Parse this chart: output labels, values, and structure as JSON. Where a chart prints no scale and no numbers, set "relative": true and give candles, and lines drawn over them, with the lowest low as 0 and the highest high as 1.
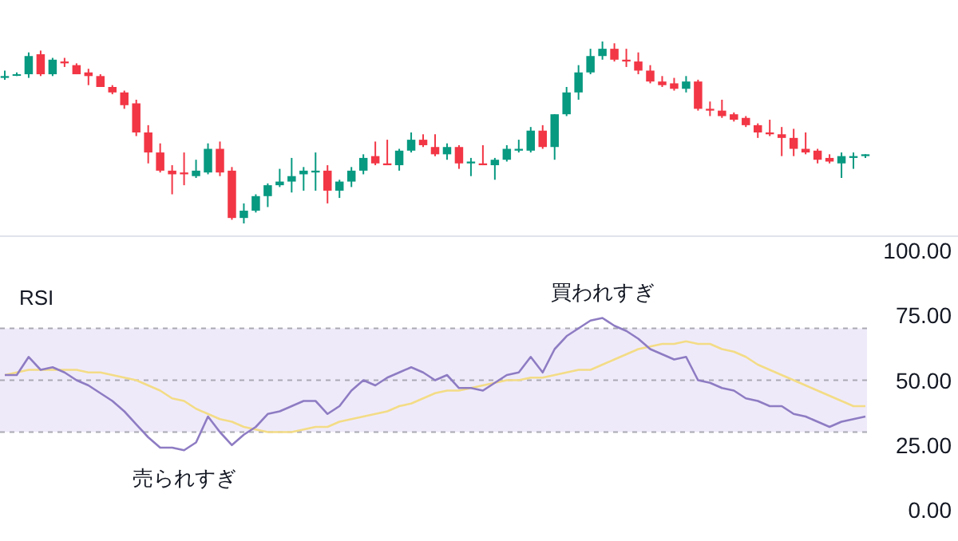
{
  "chart_data": [
    {
      "type": "candlestick",
      "relative": true,
      "categories": [
        null,
        null,
        null,
        null,
        null,
        null,
        null,
        null,
        null,
        null,
        null,
        null,
        null,
        null,
        null,
        null,
        null,
        null,
        null,
        null,
        null,
        null,
        null,
        null,
        null,
        null,
        null,
        null,
        null,
        null,
        null,
        null,
        null,
        null,
        null,
        null,
        null,
        null,
        null,
        null,
        null,
        null,
        null,
        null,
        null,
        null,
        null,
        null,
        null,
        null,
        null,
        null,
        null,
        null,
        null,
        null,
        null,
        null,
        null,
        null,
        null,
        null,
        null,
        null,
        null,
        null,
        null,
        null,
        null,
        null,
        null,
        null,
        null
      ],
      "ohlc": [
        [
          0.8,
          0.84,
          0.79,
          0.81
        ],
        [
          0.82,
          0.83,
          0.81,
          0.82
        ],
        [
          0.82,
          0.94,
          0.8,
          0.92
        ],
        [
          0.93,
          0.95,
          0.81,
          0.82
        ],
        [
          0.82,
          0.91,
          0.81,
          0.9
        ],
        [
          0.89,
          0.91,
          0.86,
          0.88
        ],
        [
          0.87,
          0.88,
          0.82,
          0.82
        ],
        [
          0.83,
          0.85,
          0.76,
          0.81
        ],
        [
          0.81,
          0.82,
          0.75,
          0.75
        ],
        [
          0.75,
          0.76,
          0.71,
          0.72
        ],
        [
          0.72,
          0.73,
          0.63,
          0.65
        ],
        [
          0.66,
          0.68,
          0.48,
          0.5
        ],
        [
          0.5,
          0.54,
          0.33,
          0.39
        ],
        [
          0.39,
          0.44,
          0.28,
          0.29
        ],
        [
          0.29,
          0.32,
          0.16,
          0.27
        ],
        [
          0.28,
          0.39,
          0.21,
          0.27
        ],
        [
          0.26,
          0.35,
          0.25,
          0.29
        ],
        [
          0.28,
          0.44,
          0.27,
          0.41
        ],
        [
          0.41,
          0.45,
          0.26,
          0.28
        ],
        [
          0.29,
          0.31,
          0.02,
          0.03
        ],
        [
          0.03,
          0.11,
          0,
          0.07
        ],
        [
          0.07,
          0.16,
          0.06,
          0.15
        ],
        [
          0.15,
          0.22,
          0.09,
          0.21
        ],
        [
          0.21,
          0.3,
          0.2,
          0.23
        ],
        [
          0.23,
          0.36,
          0.17,
          0.26
        ],
        [
          0.27,
          0.31,
          0.18,
          0.29
        ],
        [
          0.28,
          0.39,
          0.18,
          0.29
        ],
        [
          0.29,
          0.32,
          0.11,
          0.18
        ],
        [
          0.18,
          0.24,
          0.14,
          0.23
        ],
        [
          0.23,
          0.31,
          0.2,
          0.29
        ],
        [
          0.29,
          0.38,
          0.27,
          0.36
        ],
        [
          0.37,
          0.45,
          0.32,
          0.33
        ],
        [
          0.33,
          0.46,
          0.32,
          0.32
        ],
        [
          0.32,
          0.41,
          0.29,
          0.4
        ],
        [
          0.4,
          0.5,
          0.39,
          0.46
        ],
        [
          0.46,
          0.49,
          0.42,
          0.43
        ],
        [
          0.42,
          0.49,
          0.37,
          0.38
        ],
        [
          0.38,
          0.44,
          0.35,
          0.42
        ],
        [
          0.42,
          0.43,
          0.3,
          0.33
        ],
        [
          0.33,
          0.36,
          0.26,
          0.34
        ],
        [
          0.33,
          0.43,
          0.32,
          0.32
        ],
        [
          0.32,
          0.36,
          0.24,
          0.35
        ],
        [
          0.35,
          0.43,
          0.34,
          0.41
        ],
        [
          0.4,
          0.46,
          0.39,
          0.41
        ],
        [
          0.4,
          0.53,
          0.39,
          0.51
        ],
        [
          0.51,
          0.54,
          0.41,
          0.42
        ],
        [
          0.42,
          0.6,
          0.35,
          0.6
        ],
        [
          0.6,
          0.75,
          0.59,
          0.72
        ],
        [
          0.72,
          0.87,
          0.68,
          0.83
        ],
        [
          0.83,
          0.96,
          0.82,
          0.92
        ],
        [
          0.92,
          1,
          0.9,
          0.96
        ],
        [
          0.96,
          0.99,
          0.89,
          0.9
        ],
        [
          0.9,
          0.96,
          0.86,
          0.89
        ],
        [
          0.89,
          0.94,
          0.82,
          0.84
        ],
        [
          0.84,
          0.87,
          0.77,
          0.78
        ],
        [
          0.78,
          0.81,
          0.75,
          0.76
        ],
        [
          0.77,
          0.8,
          0.73,
          0.74
        ],
        [
          0.74,
          0.81,
          0.72,
          0.78
        ],
        [
          0.78,
          0.79,
          0.62,
          0.63
        ],
        [
          0.63,
          0.67,
          0.59,
          0.62
        ],
        [
          0.62,
          0.68,
          0.58,
          0.59
        ],
        [
          0.6,
          0.61,
          0.56,
          0.57
        ],
        [
          0.58,
          0.59,
          0.53,
          0.54
        ],
        [
          0.54,
          0.55,
          0.47,
          0.5
        ],
        [
          0.5,
          0.57,
          0.48,
          0.49
        ],
        [
          0.49,
          0.53,
          0.37,
          0.47
        ],
        [
          0.47,
          0.52,
          0.37,
          0.41
        ],
        [
          0.41,
          0.5,
          0.38,
          0.39
        ],
        [
          0.4,
          0.41,
          0.33,
          0.35
        ],
        [
          0.36,
          0.38,
          0.33,
          0.34
        ],
        [
          0.33,
          0.39,
          0.25,
          0.37
        ],
        [
          0.36,
          0.39,
          0.3,
          0.37
        ],
        [
          0.37,
          0.38,
          0.36,
          0.38
        ]
      ],
      "colors": [
        "#089981",
        "#089981",
        "#089981",
        "#f23645",
        "#089981",
        "#f23645",
        "#f23645",
        "#f23645",
        "#f23645",
        "#f23645",
        "#f23645",
        "#f23645",
        "#f23645",
        "#f23645",
        "#f23645",
        "#f23645",
        "#089981",
        "#089981",
        "#f23645",
        "#f23645",
        "#089981",
        "#089981",
        "#089981",
        "#089981",
        "#089981",
        "#089981",
        "#089981",
        "#f23645",
        "#089981",
        "#089981",
        "#089981",
        "#f23645",
        "#f23645",
        "#089981",
        "#089981",
        "#f23645",
        "#f23645",
        "#089981",
        "#f23645",
        "#089981",
        "#f23645",
        "#089981",
        "#089981",
        "#089981",
        "#089981",
        "#f23645",
        "#089981",
        "#089981",
        "#089981",
        "#089981",
        "#089981",
        "#f23645",
        "#f23645",
        "#f23645",
        "#f23645",
        "#f23645",
        "#f23645",
        "#089981",
        "#f23645",
        "#f23645",
        "#f23645",
        "#f23645",
        "#f23645",
        "#f23645",
        "#f23645",
        "#f23645",
        "#f23645",
        "#f23645",
        "#f23645",
        "#f23645",
        "#089981",
        "#089981",
        "#089981"
      ]
    },
    {
      "type": "line",
      "title": "RSI",
      "tick_labels": "y",
      "categories": [
        null,
        null,
        null,
        null,
        null,
        null,
        null,
        null,
        null,
        null,
        null,
        null,
        null,
        null,
        null,
        null,
        null,
        null,
        null,
        null,
        null,
        null,
        null,
        null,
        null,
        null,
        null,
        null,
        null,
        null,
        null,
        null,
        null,
        null,
        null,
        null,
        null,
        null,
        null,
        null,
        null,
        null,
        null,
        null,
        null,
        null,
        null,
        null,
        null,
        null,
        null,
        null,
        null,
        null,
        null,
        null,
        null,
        null,
        null,
        null,
        null,
        null,
        null,
        null,
        null,
        null,
        null,
        null,
        null,
        null,
        null,
        null,
        null
      ],
      "ylim": [
        0,
        100
      ],
      "yticks": [
        {
          "value": 0,
          "label": "0.00"
        },
        {
          "value": 25,
          "label": "25.00"
        },
        {
          "value": 50,
          "label": "50.00"
        },
        {
          "value": 75,
          "label": "75.00"
        },
        {
          "value": 100,
          "label": "100.00"
        }
      ],
      "bands": [
        {
          "axis": "y",
          "from": 30,
          "to": 70,
          "color": "#efeafa"
        }
      ],
      "ref_lines": [
        {
          "axis": "y",
          "value": 70,
          "color": "#a9a9b3",
          "line_style": "dashed"
        },
        {
          "axis": "y",
          "value": 50,
          "color": "#a9a9b3",
          "line_style": "dashed"
        },
        {
          "axis": "y",
          "value": 30,
          "color": "#a9a9b3",
          "line_style": "dashed"
        }
      ],
      "series": [
        {
          "color": "#f3dc86",
          "values": [
            52,
            53,
            54,
            54,
            54,
            54,
            54,
            53,
            53,
            52,
            51,
            50,
            48,
            46,
            43,
            42,
            39,
            37,
            35,
            34,
            32,
            31,
            30,
            30,
            30,
            31,
            32,
            32,
            34,
            35,
            36,
            37,
            38,
            40,
            41,
            43,
            45,
            46,
            46,
            47,
            48,
            49,
            50,
            50,
            51,
            51,
            52,
            53,
            54,
            54,
            56,
            58,
            60,
            62,
            63,
            64,
            64,
            65,
            64,
            64,
            62,
            61,
            59,
            56,
            54,
            52,
            50,
            48,
            46,
            44,
            42,
            40,
            40
          ]
        },
        {
          "color": "#8e7cc3",
          "values": [
            52,
            52,
            59,
            54,
            55,
            53,
            50,
            48,
            45,
            42,
            38,
            33,
            28,
            24,
            24,
            23,
            26,
            36,
            30,
            25,
            29,
            32,
            37,
            38,
            40,
            42,
            42,
            37,
            40,
            46,
            50,
            48,
            51,
            53,
            55,
            53,
            50,
            52,
            47,
            47,
            46,
            49,
            52,
            53,
            59,
            53,
            62,
            67,
            70,
            73,
            74,
            71,
            69,
            66,
            62,
            60,
            58,
            59,
            50,
            49,
            47,
            46,
            43,
            42,
            40,
            40,
            37,
            36,
            34,
            32,
            34,
            35,
            36
          ]
        }
      ],
      "annotations": [
        "買われすぎ",
        "売られすぎ"
      ]
    }
  ]
}
